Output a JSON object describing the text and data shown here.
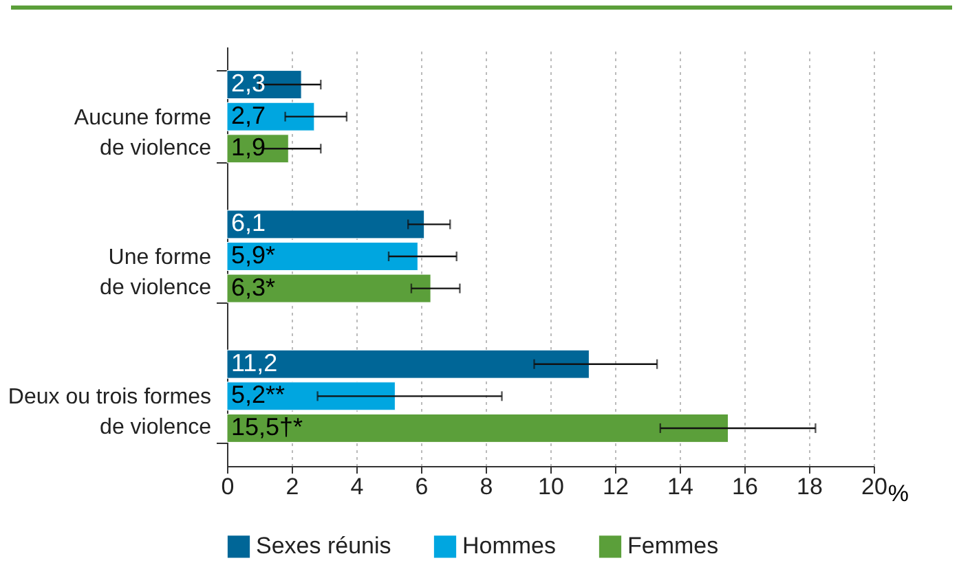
{
  "chart_data": {
    "type": "bar",
    "orientation": "horizontal",
    "categories": [
      "Aucune forme\nde violence",
      "Une forme\nde violence",
      "Deux ou trois formes\nde violence"
    ],
    "series": [
      {
        "name": "Sexes réunis",
        "color": "#006697",
        "values": [
          2.3,
          6.1,
          11.2
        ],
        "errors": [
          [
            1.0,
            2.9
          ],
          [
            5.6,
            6.9
          ],
          [
            9.5,
            13.3
          ]
        ],
        "value_labels": [
          "2,3",
          "6,1",
          "11,2"
        ]
      },
      {
        "name": "Hommes",
        "color": "#00a6e0",
        "values": [
          2.7,
          5.9,
          5.2
        ],
        "errors": [
          [
            1.8,
            3.7
          ],
          [
            5.0,
            7.1
          ],
          [
            2.8,
            8.5
          ]
        ],
        "value_labels": [
          "2,7",
          "5,9*",
          "5,2**"
        ]
      },
      {
        "name": "Femmes",
        "color": "#5b9f3a",
        "values": [
          1.9,
          6.3,
          15.5
        ],
        "errors": [
          [
            1.1,
            2.9
          ],
          [
            5.7,
            7.2
          ],
          [
            13.4,
            18.2
          ]
        ],
        "value_labels": [
          "1,9",
          "6,3*",
          "15,5†*"
        ]
      }
    ],
    "xlabel": "%",
    "xlim": [
      0,
      20
    ],
    "xticks": [
      0,
      2,
      4,
      6,
      8,
      10,
      12,
      14,
      16,
      18,
      20
    ],
    "grid": "x",
    "legend": "bottom"
  }
}
